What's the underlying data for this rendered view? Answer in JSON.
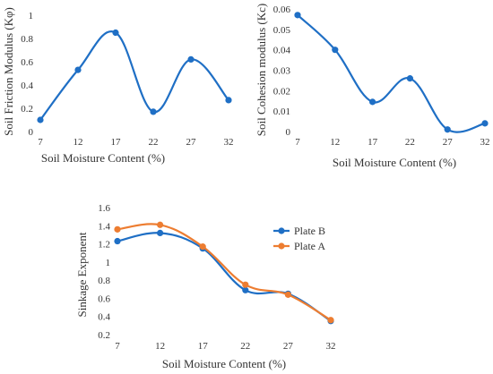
{
  "chart_data": [
    {
      "type": "line",
      "smooth": true,
      "x": [
        7,
        12,
        17,
        22,
        27,
        32
      ],
      "series": [
        {
          "values": [
            0.1,
            0.53,
            0.85,
            0.17,
            0.62,
            0.27
          ],
          "color": "#1f6fc5"
        }
      ],
      "xlabel": "Soil Moisture Content (%)",
      "ylabel": "Soil Friction Modulus (Kφ)",
      "xticks": [
        "7",
        "12",
        "17",
        "22",
        "27",
        "32"
      ],
      "yticks": [
        "0",
        "0.2",
        "0.4",
        "0.6",
        "0.8",
        "1"
      ],
      "ylim": [
        0,
        1
      ],
      "grid": false,
      "legend": false
    },
    {
      "type": "line",
      "smooth": true,
      "x": [
        7,
        12,
        17,
        22,
        27,
        32
      ],
      "series": [
        {
          "values": [
            0.057,
            0.04,
            0.0145,
            0.026,
            0.001,
            0.004
          ],
          "color": "#1f6fc5"
        }
      ],
      "xlabel": "Soil Moisture Content (%)",
      "ylabel": "Soil Cohesion modulus (Kc)",
      "xticks": [
        "7",
        "12",
        "17",
        "22",
        "27",
        "32"
      ],
      "yticks": [
        "0",
        "0.01",
        "0.02",
        "0.03",
        "0.04",
        "0.05",
        "0.06"
      ],
      "ylim": [
        0,
        0.06
      ],
      "grid": false,
      "legend": false
    },
    {
      "type": "line",
      "smooth": true,
      "x": [
        7,
        12,
        17,
        22,
        27,
        32
      ],
      "series": [
        {
          "name": "Plate B",
          "values": [
            1.23,
            1.32,
            1.15,
            0.69,
            0.65,
            0.35
          ],
          "color": "#1f6fc5"
        },
        {
          "name": "Plate A",
          "values": [
            1.36,
            1.41,
            1.17,
            0.75,
            0.64,
            0.36
          ],
          "color": "#ed7d31"
        }
      ],
      "xlabel": "Soil Moisture Content (%)",
      "ylabel": "Sinkage Exponent",
      "xticks": [
        "7",
        "12",
        "17",
        "22",
        "27",
        "32"
      ],
      "yticks": [
        "0.2",
        "0.4",
        "0.6",
        "0.8",
        "1",
        "1.2",
        "1.4",
        "1.6"
      ],
      "ylim": [
        0.2,
        1.6
      ],
      "grid": false,
      "legend": "right"
    }
  ]
}
